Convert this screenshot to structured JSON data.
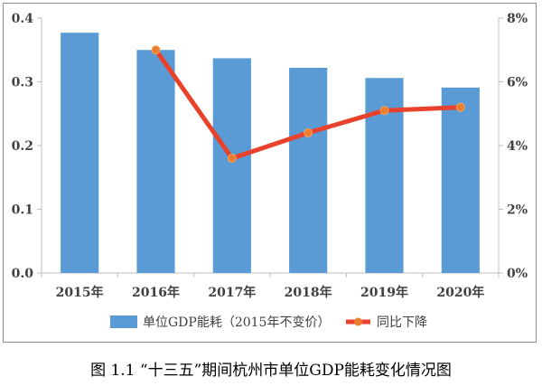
{
  "chart_data": {
    "type": "bar+line",
    "categories": [
      "2015年",
      "2016年",
      "2017年",
      "2018年",
      "2019年",
      "2020年"
    ],
    "series": [
      {
        "name": "单位GDP能耗（2015年不变价）",
        "type": "bar",
        "axis": "left",
        "values": [
          0.377,
          0.35,
          0.337,
          0.322,
          0.306,
          0.291
        ]
      },
      {
        "name": "同比下降",
        "type": "line",
        "axis": "right",
        "values": [
          null,
          7.0,
          3.6,
          4.4,
          5.1,
          5.2
        ]
      }
    ],
    "ylim_left": [
      0,
      0.4
    ],
    "yticks_left": [
      "0.0",
      "0.1",
      "0.2",
      "0.3",
      "0.4"
    ],
    "ylim_right": [
      0,
      8
    ],
    "yticks_right": [
      "0%",
      "2%",
      "4%",
      "6%",
      "8%"
    ],
    "grid": false,
    "legend_position": "bottom",
    "colors": {
      "bar": "#5b9bd5",
      "line": "#e8412c",
      "marker": "#ed7d31",
      "axis": "#bfbfbf",
      "text": "#404040"
    }
  },
  "caption": "图 1.1 “十三五”期间杭州市单位GDP能耗变化情况图"
}
